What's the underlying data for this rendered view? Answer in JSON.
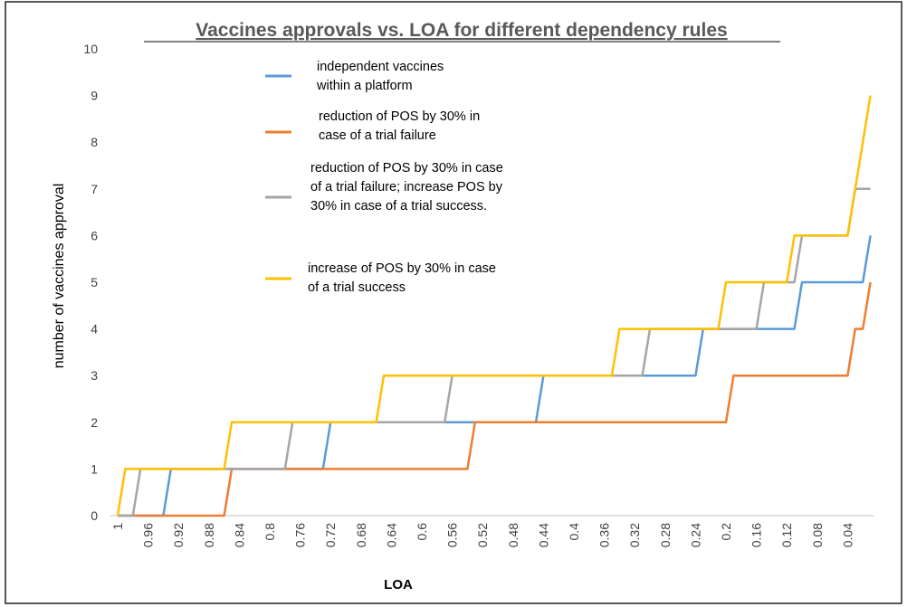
{
  "chart_data": {
    "type": "line",
    "title": "Vaccines approvals vs. LOA for different dependency rules",
    "x_label": "LOA",
    "y_label": "number  of vaccines approval",
    "categories": [
      "1",
      null,
      null,
      null,
      "0.96",
      null,
      null,
      null,
      "0.92",
      null,
      null,
      null,
      "0.88",
      null,
      null,
      null,
      "0.84",
      null,
      null,
      null,
      "0.8",
      null,
      null,
      null,
      "0.76",
      null,
      null,
      null,
      "0.72",
      null,
      null,
      null,
      "0.68",
      null,
      null,
      null,
      "0.64",
      null,
      null,
      null,
      "0.6",
      null,
      null,
      null,
      "0.56",
      null,
      null,
      null,
      "0.52",
      null,
      null,
      null,
      "0.48",
      null,
      null,
      null,
      "0.44",
      null,
      null,
      null,
      "0.4",
      null,
      null,
      null,
      "0.36",
      null,
      null,
      null,
      "0.32",
      null,
      null,
      null,
      "0.28",
      null,
      null,
      null,
      "0.24",
      null,
      null,
      null,
      "0.2",
      null,
      null,
      null,
      "0.16",
      null,
      null,
      null,
      "0.12",
      null,
      null,
      null,
      "0.08",
      null,
      null,
      null,
      "0.04",
      null,
      null,
      null
    ],
    "ylim": [
      0,
      10
    ],
    "yticks": [
      0,
      1,
      2,
      3,
      4,
      5,
      6,
      7,
      8,
      9,
      10
    ],
    "grid": false,
    "series": [
      {
        "name": "independent vaccines within a platform",
        "color": "#5b9bd5",
        "values": [
          0,
          0,
          0,
          0,
          0,
          0,
          0,
          1,
          1,
          1,
          1,
          1,
          1,
          1,
          1,
          1,
          1,
          1,
          1,
          1,
          1,
          1,
          1,
          1,
          1,
          1,
          1,
          1,
          2,
          2,
          2,
          2,
          2,
          2,
          2,
          2,
          2,
          2,
          2,
          2,
          2,
          2,
          2,
          2,
          2,
          2,
          2,
          2,
          2,
          2,
          2,
          2,
          2,
          2,
          2,
          2,
          3,
          3,
          3,
          3,
          3,
          3,
          3,
          3,
          3,
          3,
          3,
          3,
          3,
          3,
          3,
          3,
          3,
          3,
          3,
          3,
          3,
          4,
          4,
          4,
          4,
          4,
          4,
          4,
          4,
          4,
          4,
          4,
          4,
          4,
          5,
          5,
          5,
          5,
          5,
          5,
          5,
          5,
          5,
          6
        ]
      },
      {
        "name": "reduction of POS by 30% in case of a trial failure",
        "color": "#ed7d31",
        "values": [
          0,
          0,
          0,
          0,
          0,
          0,
          0,
          0,
          0,
          0,
          0,
          0,
          0,
          0,
          0,
          1,
          1,
          1,
          1,
          1,
          1,
          1,
          1,
          1,
          1,
          1,
          1,
          1,
          1,
          1,
          1,
          1,
          1,
          1,
          1,
          1,
          1,
          1,
          1,
          1,
          1,
          1,
          1,
          1,
          1,
          1,
          1,
          2,
          2,
          2,
          2,
          2,
          2,
          2,
          2,
          2,
          2,
          2,
          2,
          2,
          2,
          2,
          2,
          2,
          2,
          2,
          2,
          2,
          2,
          2,
          2,
          2,
          2,
          2,
          2,
          2,
          2,
          2,
          2,
          2,
          2,
          3,
          3,
          3,
          3,
          3,
          3,
          3,
          3,
          3,
          3,
          3,
          3,
          3,
          3,
          3,
          3,
          4,
          4,
          5
        ]
      },
      {
        "name": "reduction of POS by 30% in case of a trial failure; increase POS by 30% in case of a trial success.",
        "color": "#a5a5a5",
        "values": [
          0,
          0,
          0,
          1,
          1,
          1,
          1,
          1,
          1,
          1,
          1,
          1,
          1,
          1,
          1,
          1,
          1,
          1,
          1,
          1,
          1,
          1,
          1,
          2,
          2,
          2,
          2,
          2,
          2,
          2,
          2,
          2,
          2,
          2,
          2,
          2,
          2,
          2,
          2,
          2,
          2,
          2,
          2,
          2,
          3,
          3,
          3,
          3,
          3,
          3,
          3,
          3,
          3,
          3,
          3,
          3,
          3,
          3,
          3,
          3,
          3,
          3,
          3,
          3,
          3,
          3,
          3,
          3,
          3,
          3,
          4,
          4,
          4,
          4,
          4,
          4,
          4,
          4,
          4,
          4,
          4,
          4,
          4,
          4,
          4,
          5,
          5,
          5,
          5,
          5,
          6,
          6,
          6,
          6,
          6,
          6,
          6,
          7,
          7,
          7
        ]
      },
      {
        "name": "increase of POS by 30% in case of a trial success",
        "color": "#ffc000",
        "values": [
          0,
          1,
          1,
          1,
          1,
          1,
          1,
          1,
          1,
          1,
          1,
          1,
          1,
          1,
          1,
          2,
          2,
          2,
          2,
          2,
          2,
          2,
          2,
          2,
          2,
          2,
          2,
          2,
          2,
          2,
          2,
          2,
          2,
          2,
          2,
          3,
          3,
          3,
          3,
          3,
          3,
          3,
          3,
          3,
          3,
          3,
          3,
          3,
          3,
          3,
          3,
          3,
          3,
          3,
          3,
          3,
          3,
          3,
          3,
          3,
          3,
          3,
          3,
          3,
          3,
          3,
          4,
          4,
          4,
          4,
          4,
          4,
          4,
          4,
          4,
          4,
          4,
          4,
          4,
          4,
          5,
          5,
          5,
          5,
          5,
          5,
          5,
          5,
          5,
          6,
          6,
          6,
          6,
          6,
          6,
          6,
          6,
          7,
          8,
          9
        ]
      }
    ]
  }
}
